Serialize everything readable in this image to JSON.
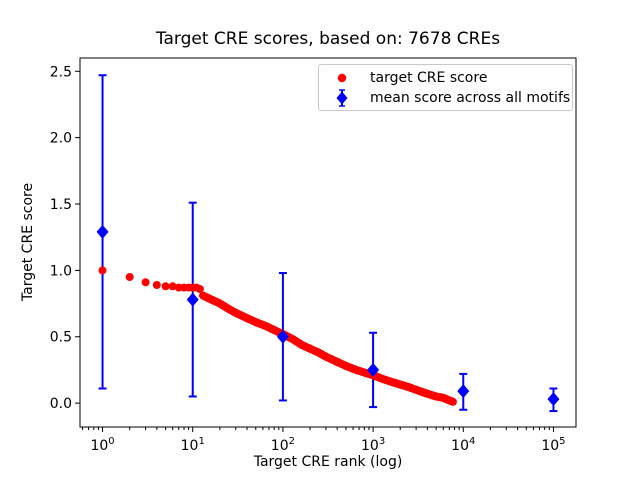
{
  "chart_data": {
    "type": "scatter",
    "title": "Target CRE scores, based on: 7678 CREs",
    "xlabel": "Target CRE rank (log)",
    "ylabel": "Target CRE score",
    "x_scale": "log",
    "xlim_log10": [
      -0.25,
      5.25
    ],
    "ylim": [
      -0.18,
      2.6
    ],
    "grid": false,
    "x_ticks": [
      {
        "value": 1,
        "base": "10",
        "exp": "0"
      },
      {
        "value": 10,
        "base": "10",
        "exp": "1"
      },
      {
        "value": 100,
        "base": "10",
        "exp": "2"
      },
      {
        "value": 1000,
        "base": "10",
        "exp": "3"
      },
      {
        "value": 10000,
        "base": "10",
        "exp": "4"
      },
      {
        "value": 100000,
        "base": "10",
        "exp": "5"
      }
    ],
    "x_minor_tick_multiples": [
      2,
      3,
      4,
      5,
      6,
      7,
      8,
      9
    ],
    "y_ticks": [
      {
        "v": 0.0,
        "label": "0.0"
      },
      {
        "v": 0.5,
        "label": "0.5"
      },
      {
        "v": 1.0,
        "label": "1.0"
      },
      {
        "v": 1.5,
        "label": "1.5"
      },
      {
        "v": 2.0,
        "label": "2.0"
      },
      {
        "v": 2.5,
        "label": "2.5"
      }
    ],
    "legend": {
      "position": "upper-right",
      "entries": [
        {
          "label": "target CRE score",
          "marker": "circle",
          "color": "#ff0000"
        },
        {
          "label": "mean score across all motifs",
          "marker": "diamond-errorbar",
          "color": "#0000ff"
        }
      ]
    },
    "series": [
      {
        "name": "target CRE score",
        "type": "scatter",
        "marker": "circle",
        "color": "#ff0000",
        "total_points_shown": 7678,
        "points_sampled": true,
        "points": [
          [
            1,
            1.0
          ],
          [
            2,
            0.95
          ],
          [
            3,
            0.91
          ],
          [
            4,
            0.89
          ],
          [
            5,
            0.88
          ],
          [
            6,
            0.88
          ],
          [
            7,
            0.87
          ],
          [
            8,
            0.87
          ],
          [
            9,
            0.87
          ],
          [
            10,
            0.87
          ],
          [
            11,
            0.87
          ],
          [
            12,
            0.86
          ],
          [
            13,
            0.81
          ],
          [
            15,
            0.79
          ],
          [
            20,
            0.75
          ],
          [
            25,
            0.71
          ],
          [
            30,
            0.68
          ],
          [
            40,
            0.64
          ],
          [
            50,
            0.61
          ],
          [
            65,
            0.58
          ],
          [
            80,
            0.55
          ],
          [
            100,
            0.52
          ],
          [
            130,
            0.48
          ],
          [
            160,
            0.44
          ],
          [
            200,
            0.41
          ],
          [
            250,
            0.38
          ],
          [
            300,
            0.35
          ],
          [
            400,
            0.31
          ],
          [
            500,
            0.28
          ],
          [
            650,
            0.25
          ],
          [
            800,
            0.23
          ],
          [
            1000,
            0.21
          ],
          [
            1300,
            0.18
          ],
          [
            1600,
            0.16
          ],
          [
            2000,
            0.14
          ],
          [
            2500,
            0.12
          ],
          [
            3000,
            0.1
          ],
          [
            4000,
            0.07
          ],
          [
            5000,
            0.05
          ],
          [
            6000,
            0.04
          ],
          [
            7000,
            0.02
          ],
          [
            7678,
            0.01
          ]
        ]
      },
      {
        "name": "mean score across all motifs",
        "type": "errorbar",
        "marker": "diamond",
        "color": "#0000ff",
        "points": [
          {
            "x": 1,
            "mean": 1.29,
            "lo": 0.11,
            "hi": 2.47
          },
          {
            "x": 10,
            "mean": 0.78,
            "lo": 0.05,
            "hi": 1.51
          },
          {
            "x": 100,
            "mean": 0.5,
            "lo": 0.02,
            "hi": 0.98
          },
          {
            "x": 1000,
            "mean": 0.25,
            "lo": -0.03,
            "hi": 0.53
          },
          {
            "x": 10000,
            "mean": 0.09,
            "lo": -0.05,
            "hi": 0.22
          },
          {
            "x": 100000,
            "mean": 0.03,
            "lo": -0.06,
            "hi": 0.11
          }
        ]
      }
    ]
  }
}
